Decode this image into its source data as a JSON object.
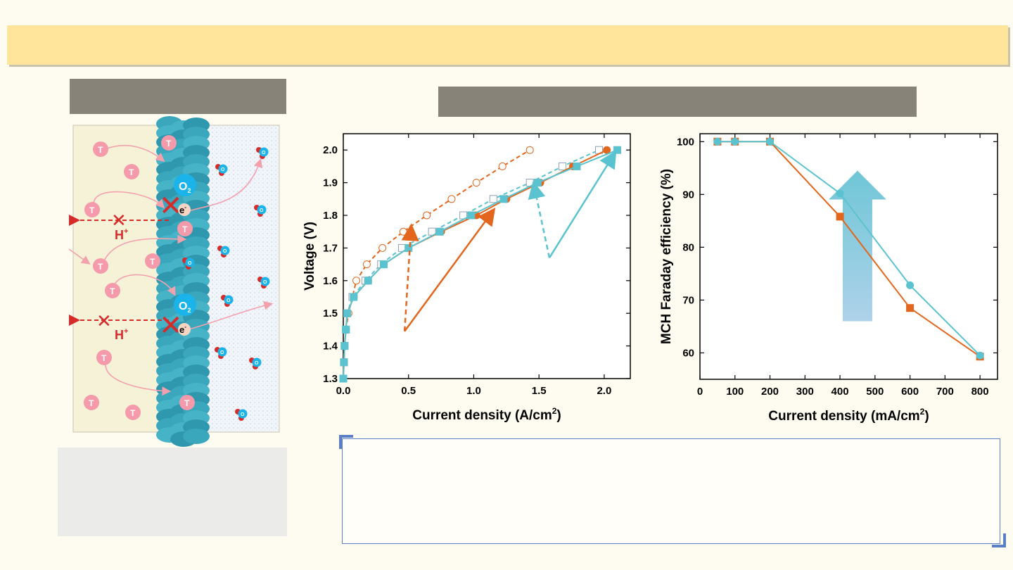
{
  "colors": {
    "orange": "#e2661d",
    "cyan": "#5ac3cf",
    "banner": "#fee59b",
    "panel_gray": "#878379",
    "note_border": "#5a7fc5",
    "pink": "#f59aaa",
    "teal": "#3ea9bf",
    "red": "#d62b2b"
  },
  "schematic": {
    "proton_label": "H",
    "proton_sup": "+",
    "electron_label": "e",
    "electron_sup": "-",
    "oxygen_label": "O",
    "oxygen_sub": "2",
    "toluene_label": "T",
    "water_o": "O",
    "water_h": "H"
  },
  "chart_data": [
    {
      "type": "line",
      "xlabel": "Current density (A/cm",
      "xlabel_sup": "2",
      "xlabel_end": ")",
      "ylabel": "Voltage (V)",
      "xlim": [
        0,
        2.2
      ],
      "ylim": [
        1.3,
        2.05
      ],
      "xticks": [
        0.0,
        0.5,
        1.0,
        1.5,
        2.0
      ],
      "xtick_labels": [
        "0.0",
        "0.5",
        "1.0",
        "1.5",
        "2.0"
      ],
      "yticks": [
        1.3,
        1.4,
        1.5,
        1.6,
        1.7,
        1.8,
        1.9,
        2.0
      ],
      "ytick_labels": [
        "1.3",
        "1.4",
        "1.5",
        "1.6",
        "1.7",
        "1.8",
        "1.9",
        "2.0"
      ],
      "series": [
        {
          "name": "orange-open",
          "color": "#e2661d",
          "marker": "circle-open",
          "dashed": true,
          "x": [
            0.0,
            0.005,
            0.01,
            0.02,
            0.04,
            0.07,
            0.1,
            0.18,
            0.3,
            0.46,
            0.64,
            0.83,
            1.02,
            1.22,
            1.43
          ],
          "y": [
            1.3,
            1.35,
            1.4,
            1.45,
            1.5,
            1.55,
            1.6,
            1.65,
            1.7,
            1.75,
            1.8,
            1.85,
            1.9,
            1.95,
            2.0
          ]
        },
        {
          "name": "cyan-open",
          "color": "#5ac3cf",
          "marker": "square-open",
          "dashed": true,
          "x": [
            0.0,
            0.005,
            0.01,
            0.02,
            0.03,
            0.07,
            0.17,
            0.29,
            0.45,
            0.68,
            0.92,
            1.15,
            1.43,
            1.68,
            1.96
          ],
          "y": [
            1.3,
            1.35,
            1.4,
            1.45,
            1.5,
            1.55,
            1.6,
            1.65,
            1.7,
            1.75,
            1.8,
            1.85,
            1.9,
            1.95,
            2.0
          ]
        },
        {
          "name": "orange-filled",
          "color": "#e2661d",
          "marker": "circle",
          "dashed": false,
          "x": [
            0.0,
            0.005,
            0.01,
            0.02,
            0.03,
            0.08,
            0.19,
            0.31,
            0.5,
            0.75,
            1.02,
            1.25,
            1.51,
            1.76,
            2.02
          ],
          "y": [
            1.3,
            1.35,
            1.4,
            1.45,
            1.5,
            1.55,
            1.6,
            1.65,
            1.7,
            1.75,
            1.8,
            1.85,
            1.9,
            1.95,
            2.0
          ]
        },
        {
          "name": "cyan-filled",
          "color": "#5ac3cf",
          "marker": "square",
          "dashed": false,
          "x": [
            0.0,
            0.005,
            0.01,
            0.02,
            0.03,
            0.08,
            0.19,
            0.31,
            0.5,
            0.74,
            0.98,
            1.23,
            1.49,
            1.79,
            2.1
          ],
          "y": [
            1.3,
            1.35,
            1.4,
            1.45,
            1.5,
            1.55,
            1.6,
            1.65,
            1.7,
            1.75,
            1.8,
            1.85,
            1.9,
            1.95,
            2.0
          ]
        }
      ],
      "annotations": [
        {
          "color": "#e2661d",
          "style": "solid",
          "from": [
            0.47,
            1.445
          ],
          "to": [
            1.15,
            1.815
          ]
        },
        {
          "color": "#e2661d",
          "style": "dashed",
          "from": [
            0.47,
            1.445
          ],
          "to": [
            0.52,
            1.765
          ]
        },
        {
          "color": "#5ac3cf",
          "style": "solid",
          "from": [
            1.58,
            1.67
          ],
          "to": [
            2.08,
            1.99
          ]
        },
        {
          "color": "#5ac3cf",
          "style": "dashed",
          "from": [
            1.58,
            1.67
          ],
          "to": [
            1.46,
            1.895
          ]
        }
      ]
    },
    {
      "type": "line",
      "xlabel": "Current density (mA/cm",
      "xlabel_sup": "2",
      "xlabel_end": ")",
      "ylabel": "MCH Faraday efficiency (%)",
      "xlim": [
        0,
        850
      ],
      "ylim": [
        55,
        101.5
      ],
      "xticks": [
        0,
        100,
        200,
        300,
        400,
        500,
        600,
        700,
        800
      ],
      "xtick_labels": [
        "0",
        "100",
        "200",
        "300",
        "400",
        "500",
        "600",
        "700",
        "800"
      ],
      "yticks": [
        60,
        70,
        80,
        90,
        100
      ],
      "ytick_labels": [
        "60",
        "70",
        "80",
        "90",
        "100"
      ],
      "series": [
        {
          "name": "orange",
          "color": "#e2661d",
          "marker": "square",
          "x": [
            50,
            100,
            200,
            400,
            600,
            800
          ],
          "y": [
            100,
            100,
            100,
            85.8,
            68.5,
            59.3
          ]
        },
        {
          "name": "cyan",
          "color": "#5ac3cf",
          "marker": "circle",
          "x": [
            50,
            100,
            200,
            400,
            600,
            800
          ],
          "y": [
            100,
            100,
            100,
            90.2,
            72.8,
            59.5
          ]
        }
      ],
      "up_arrow": {
        "x": 450,
        "y_bottom": 66,
        "y_top": 94.5
      }
    }
  ]
}
